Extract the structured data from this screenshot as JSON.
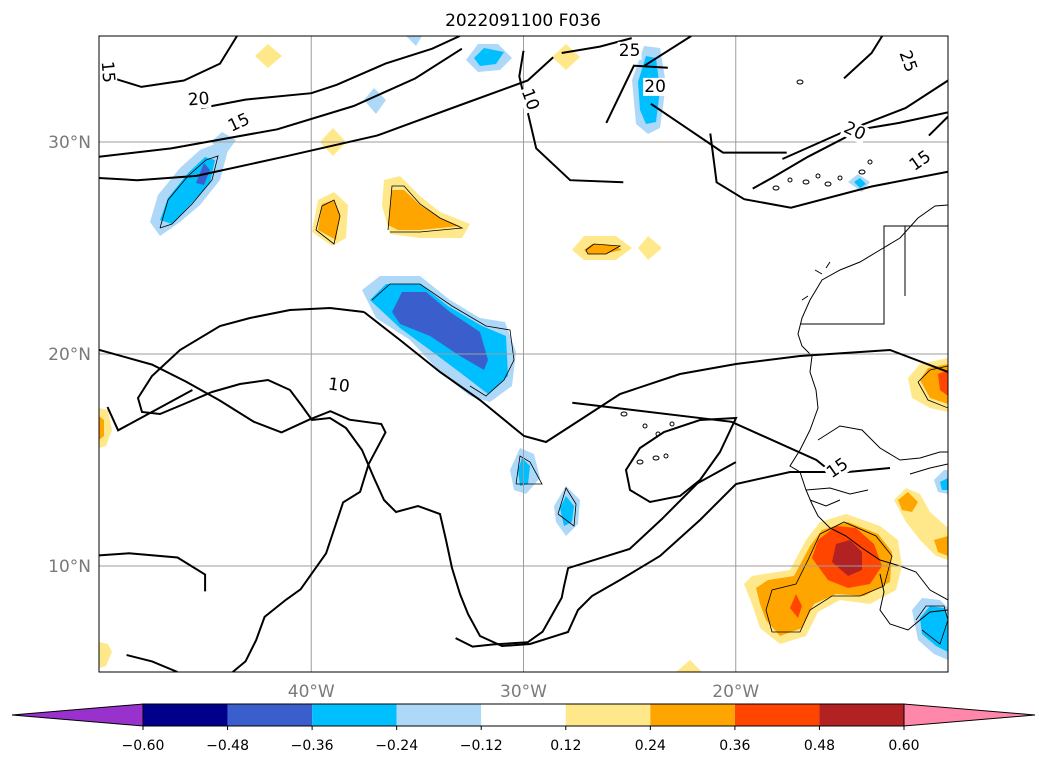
{
  "chart_data": {
    "type": "heatmap",
    "title": "2022091100 F036",
    "x_axis": {
      "range": [
        -50,
        -10
      ],
      "ticks": [
        {
          "value": -40,
          "label": "40°W"
        },
        {
          "value": -30,
          "label": "30°W"
        },
        {
          "value": -20,
          "label": "20°W"
        }
      ]
    },
    "y_axis": {
      "range": [
        5,
        35
      ],
      "ticks": [
        {
          "value": 10,
          "label": "10°N"
        },
        {
          "value": 20,
          "label": "20°N"
        },
        {
          "value": 30,
          "label": "30°N"
        }
      ]
    },
    "grid": true,
    "colorbar": {
      "placement": "bottom",
      "extend": "both",
      "boundaries": [
        -0.6,
        -0.48,
        -0.36,
        -0.24,
        -0.12,
        0.12,
        0.24,
        0.36,
        0.48,
        0.6
      ],
      "tick_labels": [
        "−0.60",
        "−0.48",
        "−0.36",
        "−0.24",
        "−0.12",
        "0.12",
        "0.24",
        "0.36",
        "0.48",
        "0.60"
      ],
      "colors": [
        "#9932cc",
        "#00008b",
        "#3a5fcd",
        "#00bfff",
        "#add8f7",
        "#ffffff",
        "#ffe88a",
        "#ffa500",
        "#ff4500",
        "#b22222",
        "#ff88aa"
      ]
    },
    "contour_labels": [
      {
        "text": "10",
        "lon": -38.7,
        "lat": 18.5,
        "rot": 8
      },
      {
        "text": "10",
        "lon": -29.7,
        "lat": 32.0,
        "rot": 70
      },
      {
        "text": "15",
        "lon": -15.2,
        "lat": 14.6,
        "rot": -35
      },
      {
        "text": "15",
        "lon": -43.4,
        "lat": 30.9,
        "rot": -25
      },
      {
        "text": "15",
        "lon": -49.6,
        "lat": 33.3,
        "rot": 85
      },
      {
        "text": "15",
        "lon": -11.3,
        "lat": 29.1,
        "rot": -35
      },
      {
        "text": "20",
        "lon": -45.3,
        "lat": 32.0,
        "rot": -5
      },
      {
        "text": "20",
        "lon": -23.8,
        "lat": 32.6,
        "rot": 0
      },
      {
        "text": "20",
        "lon": -14.4,
        "lat": 30.5,
        "rot": 25
      },
      {
        "text": "25",
        "lon": -25.0,
        "lat": 34.3,
        "rot": 0
      },
      {
        "text": "25",
        "lon": -11.9,
        "lat": 33.8,
        "rot": 70
      }
    ],
    "contours": [
      [
        [
          -43.7,
          5.0
        ],
        [
          -43.1,
          5.5
        ],
        [
          -42.6,
          6.5
        ],
        [
          -42.2,
          7.6
        ],
        [
          -41.2,
          8.4
        ],
        [
          -40.5,
          8.9
        ],
        [
          -39.3,
          10.6
        ],
        [
          -38.5,
          13.0
        ],
        [
          -37.7,
          13.5
        ],
        [
          -37.3,
          14.8
        ],
        [
          -36.5,
          16.3
        ],
        [
          -36.7,
          16.7
        ],
        [
          -38.2,
          16.9
        ],
        [
          -39.1,
          17.3
        ],
        [
          -40.1,
          16.9
        ],
        [
          -41.4,
          16.3
        ],
        [
          -42.7,
          16.8
        ],
        [
          -44.3,
          17.8
        ],
        [
          -45.9,
          18.7
        ],
        [
          -47.5,
          19.5
        ],
        [
          -50.0,
          20.2
        ]
      ],
      [
        [
          -45.0,
          8.8
        ],
        [
          -45.0,
          9.6
        ],
        [
          -46.3,
          10.4
        ],
        [
          -48.6,
          10.6
        ],
        [
          -50.0,
          10.5
        ]
      ],
      [
        [
          -49.6,
          17.5
        ],
        [
          -49.1,
          16.4
        ],
        [
          -45.6,
          18.3
        ]
      ],
      [
        [
          -27.7,
          17.7
        ],
        [
          -20.2,
          16.8
        ],
        [
          -16.2,
          15.0
        ],
        [
          -15.7,
          14.6
        ]
      ],
      [
        [
          -46.3,
          5.0
        ],
        [
          -47.5,
          5.5
        ],
        [
          -48.7,
          5.8
        ]
      ],
      [
        [
          -50.0,
          28.3
        ],
        [
          -48.2,
          28.2
        ],
        [
          -45.4,
          28.4
        ],
        [
          -41.3,
          29.3
        ],
        [
          -36.9,
          30.3
        ],
        [
          -33.1,
          31.7
        ],
        [
          -29.8,
          32.9
        ],
        [
          -28.6,
          34.0
        ]
      ],
      [
        [
          -28.2,
          34.2
        ],
        [
          -26.4,
          34.5
        ],
        [
          -24.9,
          34.9
        ]
      ],
      [
        [
          -50.0,
          29.3
        ],
        [
          -46.6,
          29.7
        ],
        [
          -41.6,
          30.6
        ],
        [
          -38.0,
          31.7
        ],
        [
          -35.1,
          33.0
        ],
        [
          -32.9,
          34.4
        ]
      ],
      [
        [
          -30.0,
          34.3
        ],
        [
          -30.2,
          33.1
        ],
        [
          -29.4,
          29.7
        ],
        [
          -27.8,
          28.2
        ],
        [
          -25.3,
          28.1
        ]
      ],
      [
        [
          -26.1,
          30.9
        ],
        [
          -24.8,
          33.6
        ],
        [
          -23.2,
          33.5
        ]
      ],
      [
        [
          -24.0,
          31.8
        ],
        [
          -20.6,
          29.5
        ],
        [
          -17.6,
          29.5
        ]
      ],
      [
        [
          -43.5,
          35.0
        ],
        [
          -44.3,
          33.7
        ],
        [
          -46.0,
          32.9
        ],
        [
          -48.0,
          32.6
        ],
        [
          -49.3,
          33.0
        ]
      ],
      [
        [
          -33.0,
          35.0
        ],
        [
          -34.3,
          34.4
        ],
        [
          -36.5,
          33.7
        ],
        [
          -38.8,
          32.7
        ],
        [
          -40.0,
          32.3
        ],
        [
          -43.1,
          32.0
        ],
        [
          -45.2,
          31.6
        ]
      ],
      [
        [
          -19.2,
          27.8
        ],
        [
          -18.3,
          28.3
        ],
        [
          -16.6,
          29.3
        ],
        [
          -14.1,
          30.6
        ],
        [
          -12.3,
          30.9
        ],
        [
          -10.0,
          31.4
        ]
      ],
      [
        [
          -21.2,
          30.4
        ],
        [
          -20.9,
          28.1
        ],
        [
          -19.6,
          27.3
        ],
        [
          -17.4,
          26.9
        ],
        [
          -13.6,
          27.9
        ],
        [
          -10.0,
          28.6
        ]
      ],
      [
        [
          -22.1,
          35.0
        ],
        [
          -24.3,
          33.6
        ]
      ],
      [
        [
          -17.8,
          29.2
        ],
        [
          -15.1,
          30.4
        ],
        [
          -12.0,
          31.6
        ],
        [
          -10.0,
          32.9
        ]
      ],
      [
        [
          -14.9,
          33.0
        ],
        [
          -13.6,
          34.2
        ],
        [
          -13.1,
          35.0
        ]
      ],
      [
        [
          -10.9,
          30.3
        ],
        [
          -10.0,
          31.2
        ]
      ],
      [
        [
          -20.0,
          14.9
        ],
        [
          -21.8,
          13.9
        ],
        [
          -23.5,
          12.2
        ],
        [
          -25.0,
          10.8
        ],
        [
          -27.9,
          9.9
        ],
        [
          -28.1,
          9.0
        ],
        [
          -28.2,
          8.5
        ],
        [
          -29.1,
          6.9
        ],
        [
          -29.8,
          6.4
        ],
        [
          -31.4,
          6.3
        ],
        [
          -32.4,
          6.2
        ],
        [
          -33.2,
          6.6
        ]
      ]
    ]
  }
}
